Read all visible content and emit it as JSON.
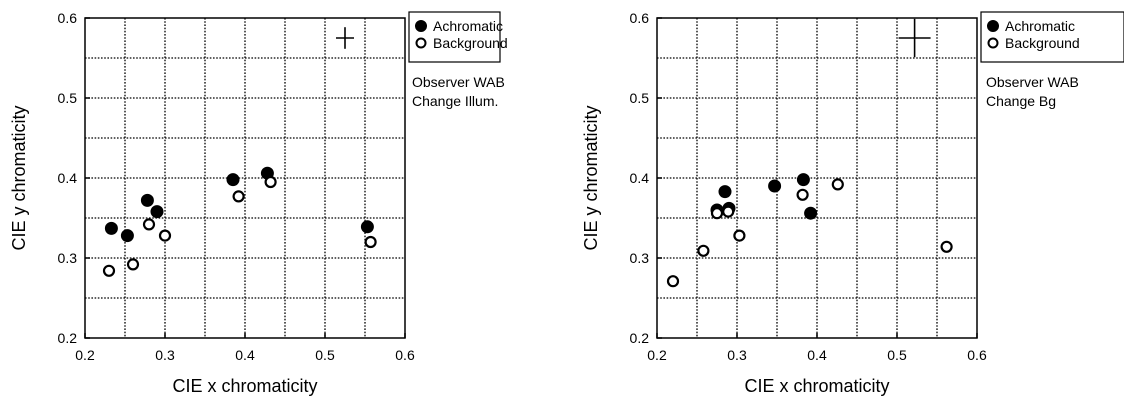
{
  "chart_data": [
    {
      "type": "scatter",
      "xlabel": "CIE x chromaticity",
      "ylabel": "CIE y chromaticity",
      "xlim": [
        0.2,
        0.6
      ],
      "ylim": [
        0.2,
        0.6
      ],
      "x_ticks": [
        "0.2",
        "0.3",
        "0.4",
        "0.5",
        "0.6"
      ],
      "y_ticks": [
        "0.2",
        "0.3",
        "0.4",
        "0.5",
        "0.6"
      ],
      "grid": true,
      "legend_position": "right-top",
      "notes": [
        "Observer WAB",
        "Change Illum."
      ],
      "crosshair": {
        "x": 0.525,
        "y": 0.575
      },
      "series": [
        {
          "name": "Achromatic",
          "marker": "filled-circle",
          "points": [
            {
              "x": 0.233,
              "y": 0.337
            },
            {
              "x": 0.253,
              "y": 0.328
            },
            {
              "x": 0.278,
              "y": 0.372
            },
            {
              "x": 0.29,
              "y": 0.358
            },
            {
              "x": 0.385,
              "y": 0.398
            },
            {
              "x": 0.428,
              "y": 0.406
            },
            {
              "x": 0.553,
              "y": 0.339
            }
          ]
        },
        {
          "name": "Background",
          "marker": "open-circle",
          "points": [
            {
              "x": 0.23,
              "y": 0.284
            },
            {
              "x": 0.26,
              "y": 0.292
            },
            {
              "x": 0.28,
              "y": 0.342
            },
            {
              "x": 0.3,
              "y": 0.328
            },
            {
              "x": 0.392,
              "y": 0.377
            },
            {
              "x": 0.432,
              "y": 0.395
            },
            {
              "x": 0.557,
              "y": 0.32
            }
          ]
        }
      ]
    },
    {
      "type": "scatter",
      "xlabel": "CIE x chromaticity",
      "ylabel": "CIE y chromaticity",
      "xlim": [
        0.2,
        0.6
      ],
      "ylim": [
        0.2,
        0.6
      ],
      "x_ticks": [
        "0.2",
        "0.3",
        "0.4",
        "0.5",
        "0.6"
      ],
      "y_ticks": [
        "0.2",
        "0.3",
        "0.4",
        "0.5",
        "0.6"
      ],
      "grid": true,
      "legend_position": "right-top",
      "notes": [
        "Observer WAB",
        "Change Bg"
      ],
      "crosshair": {
        "x": 0.522,
        "y": 0.575
      },
      "series": [
        {
          "name": "Achromatic",
          "marker": "filled-circle",
          "points": [
            {
              "x": 0.275,
              "y": 0.36
            },
            {
              "x": 0.285,
              "y": 0.383
            },
            {
              "x": 0.29,
              "y": 0.362
            },
            {
              "x": 0.347,
              "y": 0.39
            },
            {
              "x": 0.383,
              "y": 0.398
            },
            {
              "x": 0.392,
              "y": 0.356
            }
          ]
        },
        {
          "name": "Background",
          "marker": "open-circle",
          "points": [
            {
              "x": 0.22,
              "y": 0.271
            },
            {
              "x": 0.258,
              "y": 0.309
            },
            {
              "x": 0.275,
              "y": 0.356
            },
            {
              "x": 0.289,
              "y": 0.358
            },
            {
              "x": 0.303,
              "y": 0.328
            },
            {
              "x": 0.382,
              "y": 0.379
            },
            {
              "x": 0.426,
              "y": 0.392
            },
            {
              "x": 0.562,
              "y": 0.314
            }
          ]
        }
      ]
    }
  ]
}
